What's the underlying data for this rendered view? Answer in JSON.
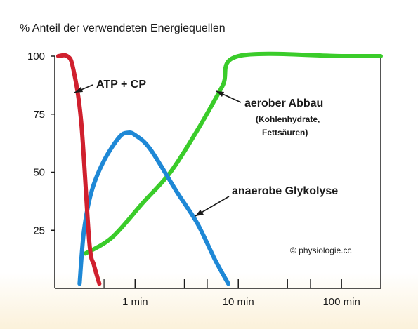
{
  "chart_data": {
    "type": "line",
    "title": "% Anteil der verwendeten Energiequellen",
    "xscale": "log",
    "xlim": [
      0.1667,
      240
    ],
    "ylim": [
      0,
      100
    ],
    "yticks": [
      {
        "value": 100,
        "label": "100"
      },
      {
        "value": 75,
        "label": "75"
      },
      {
        "value": 50,
        "label": "50"
      },
      {
        "value": 25,
        "label": "25"
      }
    ],
    "xticks": [
      {
        "value": 1,
        "label": "1 min"
      },
      {
        "value": 10,
        "label": "10 min"
      },
      {
        "value": 100,
        "label": "100 min"
      }
    ],
    "xminor": [
      0.5,
      3,
      5,
      30,
      50
    ],
    "series": [
      {
        "name": "ATP + CP",
        "color": "#d0202e",
        "x": [
          0.18,
          0.22,
          0.25,
          0.3,
          0.36,
          0.4,
          0.45
        ],
        "y": [
          100,
          100,
          95,
          72,
          20,
          10,
          2
        ]
      },
      {
        "name": "anaerobe Glykolyse",
        "color": "#1e88d6",
        "x": [
          0.29,
          0.32,
          0.38,
          0.5,
          0.7,
          0.85,
          1.0,
          1.4,
          2.5,
          4.0,
          6.0,
          8.0
        ],
        "y": [
          2,
          25,
          42,
          55,
          65,
          67,
          66,
          60,
          42,
          28,
          12,
          2
        ]
      },
      {
        "name": "aerober Abbau",
        "color": "#3acc2a",
        "x": [
          0.33,
          0.6,
          1.2,
          2.2,
          4.0,
          7.0,
          10.0,
          100,
          240
        ],
        "y": [
          15,
          22,
          37,
          50,
          68,
          87,
          100,
          100,
          100
        ]
      }
    ],
    "annotations": [
      {
        "text": "ATP + CP",
        "target": "ATP + CP"
      },
      {
        "lines": [
          "aerober Abbau",
          "(Kohlenhydrate,",
          "Fettsäuren)"
        ],
        "target": "aerober Abbau"
      },
      {
        "text": "anaerobe Glykolyse",
        "target": "anaerobe Glykolyse"
      }
    ],
    "grid": false,
    "legend": "none"
  },
  "copyright": "© physiologie.cc",
  "colors": {
    "axis": "#1a1a1a",
    "background": "#ffffff",
    "wash": "#fbf1da"
  }
}
